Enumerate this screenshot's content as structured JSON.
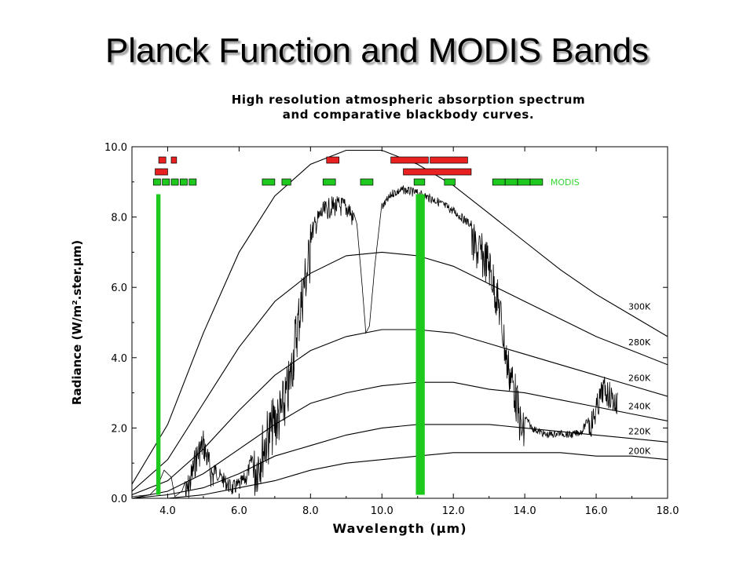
{
  "slide": {
    "title": "Planck Function and MODIS Bands"
  },
  "chart_data": {
    "type": "line",
    "title_line1": "High resolution atmospheric absorption spectrum",
    "title_line2": "and comparative blackbody curves.",
    "xlabel": "Wavelength (μm)",
    "ylabel": "Radiance (W/m².ster.μm)",
    "xlim": [
      3.0,
      18.0
    ],
    "ylim": [
      0.0,
      10.0
    ],
    "x_ticks": [
      "4.0",
      "6.0",
      "8.0",
      "10.0",
      "12.0",
      "14.0",
      "16.0",
      "18.0"
    ],
    "y_ticks": [
      "0.0",
      "2.0",
      "4.0",
      "6.0",
      "8.0",
      "10.0"
    ],
    "series": [
      {
        "name": "300K",
        "temperature": 300,
        "values": [
          [
            3.0,
            0.4
          ],
          [
            4.0,
            2.1
          ],
          [
            5.0,
            4.7
          ],
          [
            6.0,
            7.0
          ],
          [
            7.0,
            8.6
          ],
          [
            8.0,
            9.5
          ],
          [
            9.0,
            9.9
          ],
          [
            10.0,
            9.9
          ],
          [
            11.0,
            9.5
          ],
          [
            12.0,
            8.9
          ],
          [
            13.0,
            8.1
          ],
          [
            14.0,
            7.3
          ],
          [
            15.0,
            6.5
          ],
          [
            16.0,
            5.8
          ],
          [
            17.0,
            5.2
          ],
          [
            18.0,
            4.6
          ]
        ]
      },
      {
        "name": "280K",
        "temperature": 280,
        "values": [
          [
            3.0,
            0.2
          ],
          [
            4.0,
            1.1
          ],
          [
            5.0,
            2.7
          ],
          [
            6.0,
            4.3
          ],
          [
            7.0,
            5.6
          ],
          [
            8.0,
            6.4
          ],
          [
            9.0,
            6.9
          ],
          [
            10.0,
            7.0
          ],
          [
            11.0,
            6.9
          ],
          [
            12.0,
            6.6
          ],
          [
            13.0,
            6.1
          ],
          [
            14.0,
            5.6
          ],
          [
            15.0,
            5.1
          ],
          [
            16.0,
            4.6
          ],
          [
            17.0,
            4.2
          ],
          [
            18.0,
            3.8
          ]
        ]
      },
      {
        "name": "260K",
        "temperature": 260,
        "values": [
          [
            3.0,
            0.1
          ],
          [
            4.0,
            0.5
          ],
          [
            5.0,
            1.4
          ],
          [
            6.0,
            2.5
          ],
          [
            7.0,
            3.5
          ],
          [
            8.0,
            4.2
          ],
          [
            9.0,
            4.6
          ],
          [
            10.0,
            4.8
          ],
          [
            11.0,
            4.8
          ],
          [
            12.0,
            4.7
          ],
          [
            13.0,
            4.4
          ],
          [
            14.0,
            4.1
          ],
          [
            15.0,
            3.8
          ],
          [
            16.0,
            3.5
          ],
          [
            17.0,
            3.2
          ],
          [
            18.0,
            2.9
          ]
        ]
      },
      {
        "name": "240K",
        "temperature": 240,
        "values": [
          [
            3.0,
            0.0
          ],
          [
            4.0,
            0.2
          ],
          [
            5.0,
            0.7
          ],
          [
            6.0,
            1.4
          ],
          [
            7.0,
            2.1
          ],
          [
            8.0,
            2.7
          ],
          [
            9.0,
            3.0
          ],
          [
            10.0,
            3.2
          ],
          [
            11.0,
            3.3
          ],
          [
            12.0,
            3.3
          ],
          [
            13.0,
            3.1
          ],
          [
            14.0,
            3.0
          ],
          [
            15.0,
            2.8
          ],
          [
            16.0,
            2.6
          ],
          [
            17.0,
            2.4
          ],
          [
            18.0,
            2.2
          ]
        ]
      },
      {
        "name": "220K",
        "temperature": 220,
        "values": [
          [
            3.0,
            0.0
          ],
          [
            4.0,
            0.1
          ],
          [
            5.0,
            0.3
          ],
          [
            6.0,
            0.7
          ],
          [
            7.0,
            1.2
          ],
          [
            8.0,
            1.5
          ],
          [
            9.0,
            1.8
          ],
          [
            10.0,
            2.0
          ],
          [
            11.0,
            2.1
          ],
          [
            12.0,
            2.1
          ],
          [
            13.0,
            2.1
          ],
          [
            14.0,
            2.0
          ],
          [
            15.0,
            1.9
          ],
          [
            16.0,
            1.8
          ],
          [
            17.0,
            1.7
          ],
          [
            18.0,
            1.6
          ]
        ]
      },
      {
        "name": "200K",
        "temperature": 200,
        "values": [
          [
            3.0,
            0.0
          ],
          [
            4.0,
            0.0
          ],
          [
            5.0,
            0.1
          ],
          [
            6.0,
            0.3
          ],
          [
            7.0,
            0.5
          ],
          [
            8.0,
            0.8
          ],
          [
            9.0,
            1.0
          ],
          [
            10.0,
            1.1
          ],
          [
            11.0,
            1.2
          ],
          [
            12.0,
            1.3
          ],
          [
            13.0,
            1.3
          ],
          [
            14.0,
            1.3
          ],
          [
            15.0,
            1.3
          ],
          [
            16.0,
            1.2
          ],
          [
            17.0,
            1.2
          ],
          [
            18.0,
            1.1
          ]
        ]
      }
    ],
    "spectrum": {
      "color": "#000000",
      "values": [
        [
          3.0,
          0.05
        ],
        [
          3.5,
          0.1
        ],
        [
          3.7,
          0.3
        ],
        [
          3.9,
          0.8
        ],
        [
          4.1,
          0.6
        ],
        [
          4.2,
          0.05
        ],
        [
          4.4,
          0.2
        ],
        [
          4.6,
          0.8
        ],
        [
          4.8,
          1.6
        ],
        [
          5.0,
          2.0
        ],
        [
          5.2,
          1.2
        ],
        [
          5.5,
          0.8
        ],
        [
          5.8,
          0.5
        ],
        [
          6.0,
          0.6
        ],
        [
          6.2,
          0.8
        ],
        [
          6.5,
          1.8
        ],
        [
          6.8,
          2.6
        ],
        [
          7.0,
          3.0
        ],
        [
          7.2,
          3.3
        ],
        [
          7.4,
          4.0
        ],
        [
          7.6,
          5.5
        ],
        [
          7.8,
          6.8
        ],
        [
          8.0,
          7.8
        ],
        [
          8.3,
          8.4
        ],
        [
          8.6,
          8.6
        ],
        [
          8.9,
          8.6
        ],
        [
          9.1,
          8.5
        ],
        [
          9.3,
          7.8
        ],
        [
          9.45,
          6.0
        ],
        [
          9.55,
          4.7
        ],
        [
          9.65,
          4.9
        ],
        [
          9.8,
          6.6
        ],
        [
          10.0,
          8.4
        ],
        [
          10.3,
          8.8
        ],
        [
          10.6,
          8.9
        ],
        [
          11.0,
          8.8
        ],
        [
          11.5,
          8.6
        ],
        [
          12.0,
          8.3
        ],
        [
          12.5,
          7.9
        ],
        [
          13.0,
          7.3
        ],
        [
          13.3,
          6.0
        ],
        [
          13.5,
          4.5
        ],
        [
          13.7,
          3.8
        ],
        [
          13.9,
          2.6
        ],
        [
          14.2,
          2.1
        ],
        [
          14.6,
          1.9
        ],
        [
          15.0,
          1.95
        ],
        [
          15.3,
          1.9
        ],
        [
          15.6,
          2.0
        ],
        [
          15.9,
          2.6
        ],
        [
          16.2,
          3.5
        ],
        [
          16.4,
          3.3
        ],
        [
          16.6,
          3.0
        ]
      ]
    },
    "modis": {
      "label": "MODIS",
      "label_color": "#33d633",
      "green_color": "#1ec91e",
      "red_color": "#e82020",
      "red_row1": [
        [
          3.75,
          3.95
        ],
        [
          4.1,
          4.25
        ],
        [
          8.45,
          8.8
        ],
        [
          10.25,
          11.3
        ],
        [
          11.35,
          12.4
        ]
      ],
      "red_row2": [
        [
          3.65,
          4.0
        ],
        [
          10.6,
          12.5
        ]
      ],
      "green_row": [
        [
          3.6,
          3.8
        ],
        [
          3.85,
          4.05
        ],
        [
          4.1,
          4.3
        ],
        [
          4.35,
          4.55
        ],
        [
          4.6,
          4.8
        ],
        [
          6.65,
          7.0
        ],
        [
          7.2,
          7.45
        ],
        [
          8.35,
          8.7
        ],
        [
          9.4,
          9.75
        ],
        [
          10.9,
          11.2
        ],
        [
          11.75,
          12.05
        ],
        [
          13.1,
          13.45
        ],
        [
          13.45,
          13.8
        ],
        [
          13.8,
          14.15
        ],
        [
          14.15,
          14.5
        ]
      ],
      "highlight_bars": [
        [
          3.68,
          3.8
        ],
        [
          10.95,
          11.2
        ]
      ],
      "highlight_top": 8.65
    },
    "grid": false,
    "legend": "inline curve labels at right"
  }
}
